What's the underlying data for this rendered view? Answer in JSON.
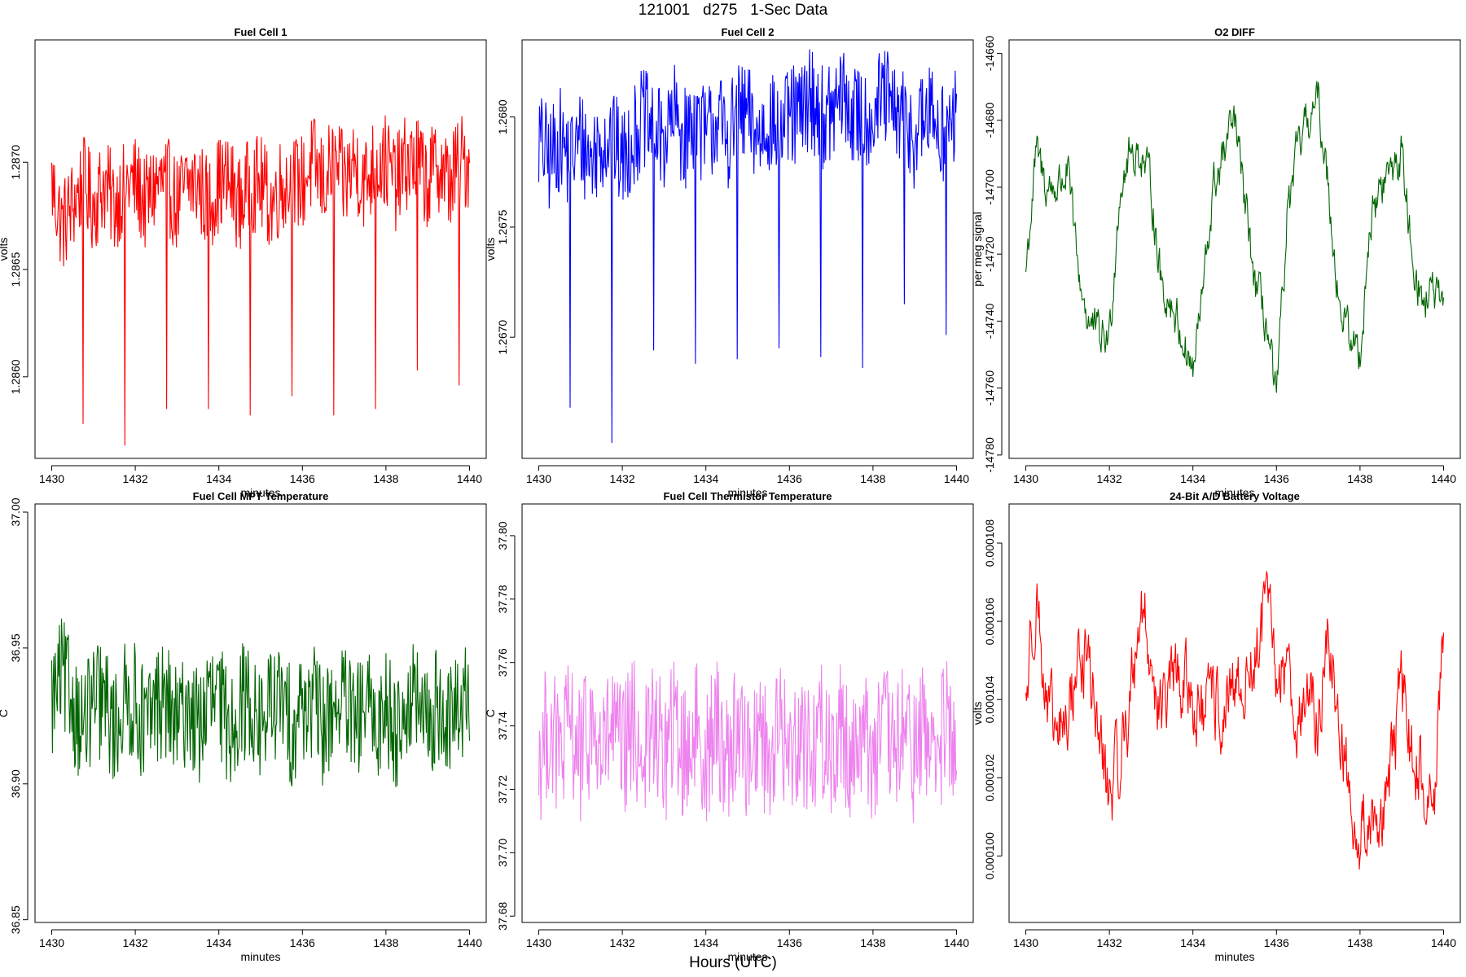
{
  "figure": {
    "title": "121001   d275   1-Sec Data",
    "xlabel": "Hours (UTC)"
  },
  "chart_data": [
    {
      "type": "line",
      "title": "Fuel Cell 1",
      "xlabel": "minutes",
      "ylabel": "volts",
      "color": "#ff0000",
      "xlim": [
        1429.6,
        1440.4
      ],
      "ylim": [
        1.28562,
        1.28757
      ],
      "xticks": [
        1430,
        1432,
        1434,
        1436,
        1438,
        1440
      ],
      "yticks": [
        1.286,
        1.2865,
        1.287
      ],
      "ytick_labels": [
        "1.2860",
        "1.2865",
        "1.2870"
      ],
      "x": [
        1430.0,
        1430.25,
        1430.5,
        1430.75,
        1431.0,
        1431.25,
        1431.5,
        1431.75,
        1432.0,
        1432.25,
        1432.5,
        1432.75,
        1433.0,
        1433.25,
        1433.5,
        1433.75,
        1434.0,
        1434.25,
        1434.5,
        1434.75,
        1435.0,
        1435.25,
        1435.5,
        1435.75,
        1436.0,
        1436.25,
        1436.5,
        1436.75,
        1437.0,
        1437.25,
        1437.5,
        1437.75,
        1438.0,
        1438.25,
        1438.5,
        1438.75,
        1439.0,
        1439.25,
        1439.5,
        1439.75,
        1440.0
      ],
      "y": [
        1.2869,
        1.2867,
        1.2868,
        1.2869,
        1.2868,
        1.2869,
        1.2868,
        1.2869,
        1.2869,
        1.2868,
        1.2869,
        1.2869,
        1.2868,
        1.2869,
        1.2869,
        1.2868,
        1.2869,
        1.2869,
        1.2868,
        1.2869,
        1.2869,
        1.2868,
        1.2869,
        1.2869,
        1.2869,
        1.287,
        1.2869,
        1.287,
        1.2869,
        1.287,
        1.2869,
        1.287,
        1.287,
        1.2869,
        1.287,
        1.287,
        1.2869,
        1.287,
        1.2869,
        1.287,
        1.287
      ],
      "spikes": [
        [
          1430.75,
          1.28578
        ],
        [
          1431.75,
          1.28568
        ],
        [
          1432.75,
          1.28585
        ],
        [
          1433.75,
          1.28585
        ],
        [
          1434.75,
          1.28582
        ],
        [
          1435.75,
          1.28591
        ],
        [
          1436.75,
          1.28582
        ],
        [
          1437.75,
          1.28585
        ],
        [
          1438.75,
          1.28603
        ],
        [
          1439.75,
          1.28596
        ]
      ]
    },
    {
      "type": "line",
      "title": "Fuel Cell 2",
      "xlabel": "minutes",
      "ylabel": "volts",
      "color": "#0000ff",
      "xlim": [
        1429.6,
        1440.4
      ],
      "ylim": [
        1.26645,
        1.26835
      ],
      "xticks": [
        1430,
        1432,
        1434,
        1436,
        1438,
        1440
      ],
      "yticks": [
        1.267,
        1.2675,
        1.268
      ],
      "ytick_labels": [
        "1.2670",
        "1.2675",
        "1.2680"
      ],
      "x": [
        1430.0,
        1430.25,
        1430.5,
        1430.75,
        1431.0,
        1431.25,
        1431.5,
        1431.75,
        1432.0,
        1432.25,
        1432.5,
        1432.75,
        1433.0,
        1433.25,
        1433.5,
        1433.75,
        1434.0,
        1434.25,
        1434.5,
        1434.75,
        1435.0,
        1435.25,
        1435.5,
        1435.75,
        1436.0,
        1436.25,
        1436.5,
        1436.75,
        1437.0,
        1437.25,
        1437.5,
        1437.75,
        1438.0,
        1438.25,
        1438.5,
        1438.75,
        1439.0,
        1439.25,
        1439.5,
        1439.75,
        1440.0
      ],
      "y": [
        1.2679,
        1.2678,
        1.2679,
        1.2678,
        1.2679,
        1.2678,
        1.2679,
        1.2679,
        1.2678,
        1.2679,
        1.268,
        1.2679,
        1.2679,
        1.268,
        1.2679,
        1.268,
        1.2679,
        1.268,
        1.2679,
        1.268,
        1.268,
        1.2679,
        1.268,
        1.2679,
        1.268,
        1.268,
        1.2681,
        1.268,
        1.268,
        1.2681,
        1.268,
        1.268,
        1.268,
        1.2681,
        1.268,
        1.268,
        1.2679,
        1.268,
        1.268,
        1.2679,
        1.268
      ],
      "spikes": [
        [
          1430.75,
          1.26668
        ],
        [
          1431.75,
          1.26652
        ],
        [
          1432.75,
          1.26694
        ],
        [
          1433.75,
          1.26688
        ],
        [
          1434.75,
          1.2669
        ],
        [
          1435.75,
          1.26695
        ],
        [
          1436.75,
          1.26691
        ],
        [
          1437.75,
          1.26686
        ],
        [
          1438.75,
          1.26715
        ],
        [
          1439.75,
          1.26701
        ]
      ]
    },
    {
      "type": "line",
      "title": "O2 DIFF",
      "xlabel": "minutes",
      "ylabel": "per meg signal",
      "color": "#006400",
      "xlim": [
        1429.6,
        1440.4
      ],
      "ylim": [
        -14781,
        -14656
      ],
      "xticks": [
        1430,
        1432,
        1434,
        1436,
        1438,
        1440
      ],
      "yticks": [
        -14780,
        -14760,
        -14740,
        -14720,
        -14700,
        -14680,
        -14660
      ],
      "ytick_labels": [
        "-14780",
        "-14760",
        "-14740",
        "-14720",
        "-14700",
        "-14680",
        "-14660"
      ],
      "x": [
        1430.0,
        1430.25,
        1430.5,
        1430.75,
        1431.0,
        1431.25,
        1431.5,
        1431.75,
        1432.0,
        1432.25,
        1432.5,
        1432.75,
        1433.0,
        1433.25,
        1433.5,
        1433.75,
        1434.0,
        1434.25,
        1434.5,
        1434.75,
        1435.0,
        1435.25,
        1435.5,
        1435.75,
        1436.0,
        1436.25,
        1436.5,
        1436.75,
        1437.0,
        1437.25,
        1437.5,
        1437.75,
        1438.0,
        1438.25,
        1438.5,
        1438.75,
        1439.0,
        1439.25,
        1439.5,
        1439.75,
        1440.0
      ],
      "y": [
        -14725,
        -14690,
        -14700,
        -14700,
        -14695,
        -14725,
        -14740,
        -14745,
        -14745,
        -14700,
        -14690,
        -14690,
        -14700,
        -14730,
        -14735,
        -14745,
        -14755,
        -14730,
        -14700,
        -14690,
        -14680,
        -14705,
        -14730,
        -14740,
        -14765,
        -14710,
        -14690,
        -14680,
        -14675,
        -14700,
        -14735,
        -14745,
        -14750,
        -14710,
        -14700,
        -14695,
        -14690,
        -14720,
        -14735,
        -14730,
        -14740
      ]
    },
    {
      "type": "line",
      "title": "Fuel Cell MPT Temperature",
      "xlabel": "minutes",
      "ylabel": "C",
      "color": "#006400",
      "xlim": [
        1429.6,
        1440.4
      ],
      "ylim": [
        36.849,
        37.003
      ],
      "xticks": [
        1430,
        1432,
        1434,
        1436,
        1438,
        1440
      ],
      "yticks": [
        36.85,
        36.9,
        36.95,
        37.0
      ],
      "ytick_labels": [
        "36.85",
        "36.90",
        "36.95",
        "37.00"
      ],
      "x": [
        1430.0,
        1430.25,
        1430.5,
        1430.75,
        1431.0,
        1431.25,
        1431.5,
        1431.75,
        1432.0,
        1432.25,
        1432.5,
        1432.75,
        1433.0,
        1433.25,
        1433.5,
        1433.75,
        1434.0,
        1434.25,
        1434.5,
        1434.75,
        1435.0,
        1435.25,
        1435.5,
        1435.75,
        1436.0,
        1436.25,
        1436.5,
        1436.75,
        1437.0,
        1437.25,
        1437.5,
        1437.75,
        1438.0,
        1438.25,
        1438.5,
        1438.75,
        1439.0,
        1439.25,
        1439.5,
        1439.75,
        1440.0
      ],
      "y": [
        36.93,
        36.94,
        36.93,
        36.92,
        36.93,
        36.93,
        36.92,
        36.93,
        36.93,
        36.92,
        36.93,
        36.93,
        36.92,
        36.93,
        36.92,
        36.93,
        36.93,
        36.92,
        36.93,
        36.93,
        36.92,
        36.93,
        36.93,
        36.92,
        36.93,
        36.93,
        36.92,
        36.93,
        36.93,
        36.92,
        36.93,
        36.92,
        36.93,
        36.92,
        36.93,
        36.93,
        36.92,
        36.93,
        36.92,
        36.93,
        36.93
      ]
    },
    {
      "type": "line",
      "title": "Fuel Cell Thermistor Temperature",
      "xlabel": "minutes",
      "ylabel": "C",
      "color": "#ee82ee",
      "xlim": [
        1429.6,
        1440.4
      ],
      "ylim": [
        37.678,
        37.81
      ],
      "xticks": [
        1430,
        1432,
        1434,
        1436,
        1438,
        1440
      ],
      "yticks": [
        37.68,
        37.7,
        37.72,
        37.74,
        37.76,
        37.78,
        37.8
      ],
      "ytick_labels": [
        "37.68",
        "37.70",
        "37.72",
        "37.74",
        "37.76",
        "37.78",
        "37.80"
      ],
      "x": [
        1430.0,
        1430.25,
        1430.5,
        1430.75,
        1431.0,
        1431.25,
        1431.5,
        1431.75,
        1432.0,
        1432.25,
        1432.5,
        1432.75,
        1433.0,
        1433.25,
        1433.5,
        1433.75,
        1434.0,
        1434.25,
        1434.5,
        1434.75,
        1435.0,
        1435.25,
        1435.5,
        1435.75,
        1436.0,
        1436.25,
        1436.5,
        1436.75,
        1437.0,
        1437.25,
        1437.5,
        1437.75,
        1438.0,
        1438.25,
        1438.5,
        1438.75,
        1439.0,
        1439.25,
        1439.5,
        1439.75,
        1440.0
      ],
      "y": [
        37.73,
        37.74,
        37.73,
        37.74,
        37.73,
        37.74,
        37.73,
        37.74,
        37.73,
        37.74,
        37.73,
        37.74,
        37.73,
        37.74,
        37.73,
        37.74,
        37.73,
        37.74,
        37.73,
        37.74,
        37.73,
        37.74,
        37.73,
        37.74,
        37.73,
        37.74,
        37.73,
        37.74,
        37.73,
        37.74,
        37.73,
        37.74,
        37.73,
        37.74,
        37.73,
        37.74,
        37.73,
        37.74,
        37.73,
        37.74,
        37.73
      ]
    },
    {
      "type": "line",
      "title": "24-Bit A/D Battery Voltage",
      "xlabel": "minutes",
      "ylabel": "volts",
      "color": "#ff0000",
      "xlim": [
        1429.6,
        1440.4
      ],
      "ylim": [
        9.83e-05,
        0.000109
      ],
      "xticks": [
        1430,
        1432,
        1434,
        1436,
        1438,
        1440
      ],
      "yticks": [
        0.0001,
        0.000102,
        0.000104,
        0.000106,
        0.000108
      ],
      "ytick_labels": [
        "0.000100",
        "0.000102",
        "0.000104",
        "0.000106",
        "0.000108"
      ],
      "x": [
        1430.0,
        1430.25,
        1430.5,
        1430.75,
        1431.0,
        1431.25,
        1431.5,
        1431.75,
        1432.0,
        1432.25,
        1432.5,
        1432.75,
        1433.0,
        1433.25,
        1433.5,
        1433.75,
        1434.0,
        1434.25,
        1434.5,
        1434.75,
        1435.0,
        1435.25,
        1435.5,
        1435.75,
        1436.0,
        1436.25,
        1436.5,
        1436.75,
        1437.0,
        1437.25,
        1437.5,
        1437.75,
        1438.0,
        1438.25,
        1438.5,
        1438.75,
        1439.0,
        1439.25,
        1439.5,
        1439.75,
        1440.0
      ],
      "y": [
        0.000104,
        0.000107,
        0.0001035,
        0.000103,
        0.0001035,
        0.000105,
        0.000105,
        0.000103,
        0.0001015,
        0.0001025,
        0.000104,
        0.0001065,
        0.000105,
        0.0001035,
        0.0001045,
        0.0001045,
        0.000104,
        0.0001035,
        0.000104,
        0.0001035,
        0.000104,
        0.0001045,
        0.000105,
        0.0001065,
        0.0001045,
        0.000105,
        0.0001035,
        0.000104,
        0.0001035,
        0.0001055,
        0.0001035,
        0.0001015,
        0.0001005,
        0.000101,
        0.000101,
        0.000102,
        0.0001045,
        0.0001025,
        0.000102,
        0.000101,
        0.0001055
      ]
    }
  ]
}
